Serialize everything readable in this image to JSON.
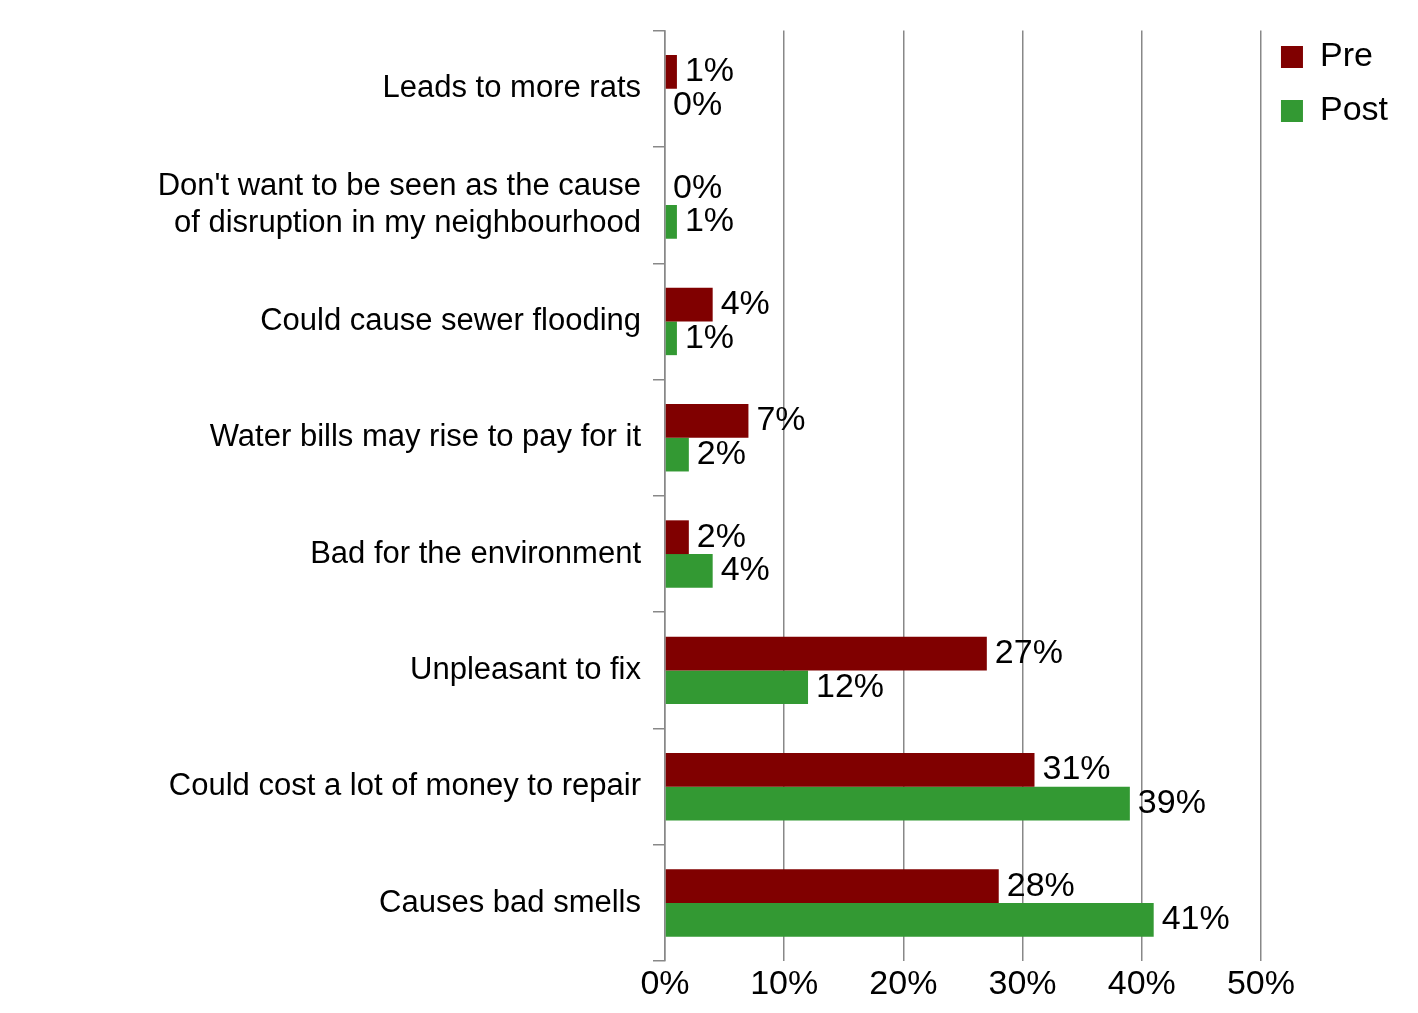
{
  "chart_data": {
    "type": "bar",
    "orientation": "horizontal",
    "categories": [
      "Leads to more rats",
      "Don't want to be seen as the cause of disruption in my neighbourhood",
      "Could cause sewer flooding",
      "Water bills may rise to pay for it",
      "Bad for the environment",
      "Unpleasant to fix",
      "Could cost a lot of money to repair",
      "Causes bad smells"
    ],
    "series": [
      {
        "name": "Pre",
        "color": "#800000",
        "values": [
          1,
          0,
          4,
          7,
          2,
          27,
          31,
          28
        ],
        "value_labels": [
          "1%",
          "0%",
          "4%",
          "7%",
          "2%",
          "27%",
          "31%",
          "28%"
        ]
      },
      {
        "name": "Post",
        "color": "#339933",
        "values": [
          0,
          1,
          1,
          2,
          4,
          12,
          39,
          41
        ],
        "value_labels": [
          "0%",
          "1%",
          "1%",
          "2%",
          "4%",
          "12%",
          "39%",
          "41%"
        ]
      }
    ],
    "xlim": [
      0,
      50
    ],
    "xticks": [
      {
        "value": 0,
        "label": "0%"
      },
      {
        "value": 10,
        "label": "10%"
      },
      {
        "value": 20,
        "label": "20%"
      },
      {
        "value": 30,
        "label": "30%"
      },
      {
        "value": 40,
        "label": "40%"
      },
      {
        "value": 50,
        "label": "50%"
      }
    ],
    "grid": "x",
    "legend": "top right"
  }
}
